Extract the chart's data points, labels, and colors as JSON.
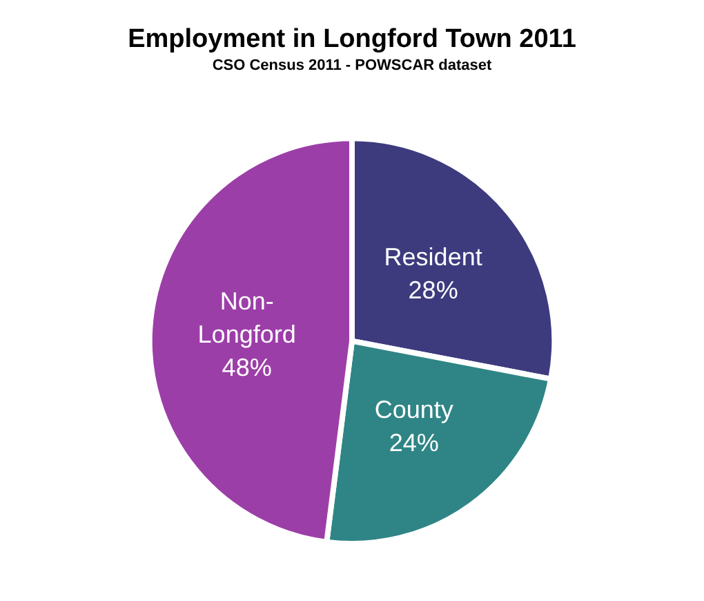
{
  "chart_data": {
    "type": "pie",
    "title": "Employment in Longford Town 2011",
    "subtitle": "CSO Census 2011 - POWSCAR dataset",
    "categories": [
      "Resident",
      "County",
      "Non-Longford"
    ],
    "values": [
      28,
      24,
      48
    ],
    "value_labels": [
      "28%",
      "24%",
      "48%"
    ],
    "colors": [
      "#3d3b7e",
      "#2f8585",
      "#9c3ea8"
    ],
    "legend": false
  }
}
